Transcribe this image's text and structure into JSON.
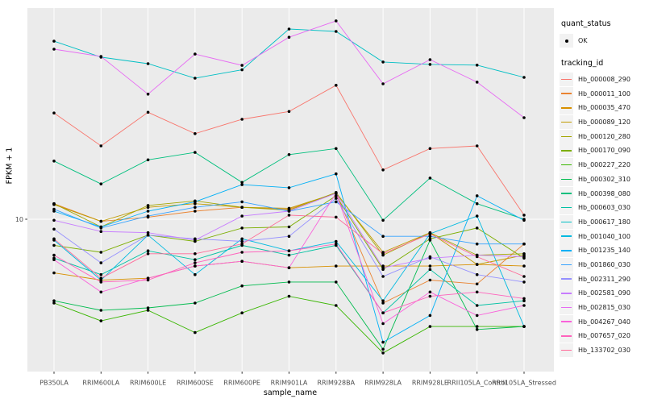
{
  "figure": {
    "background": "#FFFFFF",
    "panel_bg": "#EBEBEB",
    "grid_color": "#FFFFFF",
    "axis_text_color": "#4D4D4D",
    "tick_color": "#333333",
    "point_color": "#000000",
    "legend_key_bg": "#F2F2F2"
  },
  "chart_data": {
    "type": "line",
    "xlabel": "sample_name",
    "ylabel": "FPKM + 1",
    "grid": true,
    "legend_position": "right",
    "y_axis": {
      "scale": "log10",
      "tick_values": [
        10
      ],
      "tick_labels": [
        "10"
      ]
    },
    "legend_quant": {
      "title": "quant_status",
      "entries": [
        {
          "label": "OK",
          "glyph": "point"
        }
      ]
    },
    "legend_series_title": "tracking_id",
    "categories": [
      "PB350LA",
      "RRIM600LA",
      "RRIM600LE",
      "RRIM600SE",
      "RRIM600PE",
      "RRIM901LA",
      "RRIM928BA",
      "RRIM928LA",
      "RRIM928LE",
      "RRII105LA_Control",
      "RRII105LA_Stressed"
    ],
    "series": [
      {
        "name": "Hb_000008_290",
        "color": "#F8766D",
        "values": [
          27.5,
          20.1,
          27.7,
          22.6,
          25.9,
          27.9,
          35.8,
          16.0,
          19.6,
          20.1,
          10.4
        ]
      },
      {
        "name": "Hb_000011_100",
        "color": "#EA8331",
        "values": [
          11.6,
          9.8,
          10.2,
          10.8,
          11.2,
          11.0,
          12.8,
          4.5,
          5.6,
          5.4,
          7.9
        ]
      },
      {
        "name": "Hb_000035_470",
        "color": "#D89000",
        "values": [
          6.0,
          5.6,
          5.7,
          6.4,
          6.7,
          6.3,
          6.4,
          6.4,
          6.4,
          6.5,
          6.4
        ]
      },
      {
        "name": "Hb_000089_120",
        "color": "#C09B00",
        "values": [
          11.5,
          9.8,
          11.2,
          11.6,
          11.2,
          11.1,
          12.8,
          7.3,
          8.8,
          6.5,
          7.1
        ]
      },
      {
        "name": "Hb_000120_280",
        "color": "#A3A500",
        "values": [
          11.6,
          9.3,
          11.4,
          11.9,
          11.2,
          10.9,
          12.9,
          7.1,
          8.8,
          7.1,
          7.2
        ]
      },
      {
        "name": "Hb_000170_090",
        "color": "#7CAE00",
        "values": [
          7.8,
          7.3,
          8.6,
          8.1,
          9.2,
          9.3,
          12.5,
          6.2,
          8.3,
          9.2,
          6.9
        ]
      },
      {
        "name": "Hb_000227_220",
        "color": "#39B600",
        "values": [
          4.5,
          3.8,
          4.2,
          3.4,
          4.1,
          4.8,
          4.4,
          2.8,
          3.6,
          3.6,
          3.6
        ]
      },
      {
        "name": "Hb_000302_310",
        "color": "#00BB4E",
        "values": [
          4.6,
          4.2,
          4.3,
          4.5,
          5.3,
          5.5,
          5.5,
          2.9,
          8.2,
          3.5,
          3.6
        ]
      },
      {
        "name": "Hb_000398_080",
        "color": "#00BF7D",
        "values": [
          17.4,
          14.0,
          17.6,
          18.9,
          14.2,
          18.5,
          19.6,
          9.9,
          14.8,
          11.6,
          10.0
        ]
      },
      {
        "name": "Hb_000603_030",
        "color": "#00C1A3",
        "values": [
          6.9,
          5.9,
          7.4,
          6.8,
          7.8,
          7.1,
          7.8,
          4.1,
          6.2,
          4.4,
          4.6
        ]
      },
      {
        "name": "Hb_000617_180",
        "color": "#00BFC4",
        "values": [
          54.5,
          46.8,
          44.0,
          38.3,
          41.5,
          61.2,
          59.8,
          44.7,
          43.7,
          43.4,
          38.6
        ]
      },
      {
        "name": "Hb_001040_100",
        "color": "#00BAE0",
        "values": [
          8.2,
          5.6,
          8.6,
          5.9,
          8.3,
          7.4,
          8.1,
          4.6,
          8.7,
          10.3,
          3.6
        ]
      },
      {
        "name": "Hb_001235_140",
        "color": "#00B0F6",
        "values": [
          10.8,
          9.3,
          10.8,
          11.8,
          13.9,
          13.5,
          15.4,
          3.1,
          4.0,
          12.5,
          9.9
        ]
      },
      {
        "name": "Hb_001860_030",
        "color": "#35A2FF",
        "values": [
          11.0,
          9.2,
          10.3,
          11.2,
          11.8,
          10.8,
          11.8,
          8.5,
          8.5,
          7.9,
          7.9
        ]
      },
      {
        "name": "Hb_002311_290",
        "color": "#9590FF",
        "values": [
          9.1,
          6.6,
          8.6,
          8.3,
          8.1,
          8.5,
          12.2,
          5.8,
          7.0,
          5.9,
          5.5
        ]
      },
      {
        "name": "Hb_002581_090",
        "color": "#C77CFF",
        "values": [
          9.9,
          8.9,
          8.8,
          8.2,
          10.3,
          10.8,
          12.8,
          6.3,
          6.9,
          7.1,
          7.0
        ]
      },
      {
        "name": "Hb_002815_030",
        "color": "#E76BF3",
        "values": [
          50.5,
          47.1,
          32.9,
          48.2,
          43.3,
          56.6,
          66.1,
          36.3,
          45.7,
          36.9,
          26.3
        ]
      },
      {
        "name": "Hb_004267_040",
        "color": "#FA62DB",
        "values": [
          6.8,
          5.0,
          5.7,
          6.4,
          6.7,
          6.3,
          12.8,
          3.7,
          5.0,
          4.0,
          4.4
        ]
      },
      {
        "name": "Hb_007657_020",
        "color": "#FF62BC",
        "values": [
          7.1,
          5.5,
          5.6,
          6.6,
          7.3,
          7.4,
          7.9,
          4.1,
          4.8,
          5.0,
          4.7
        ]
      },
      {
        "name": "Hb_133702_030",
        "color": "#FF6A98",
        "values": [
          8.3,
          5.7,
          7.2,
          7.2,
          7.9,
          10.4,
          10.2,
          7.2,
          8.7,
          7.0,
          5.8
        ]
      }
    ]
  }
}
